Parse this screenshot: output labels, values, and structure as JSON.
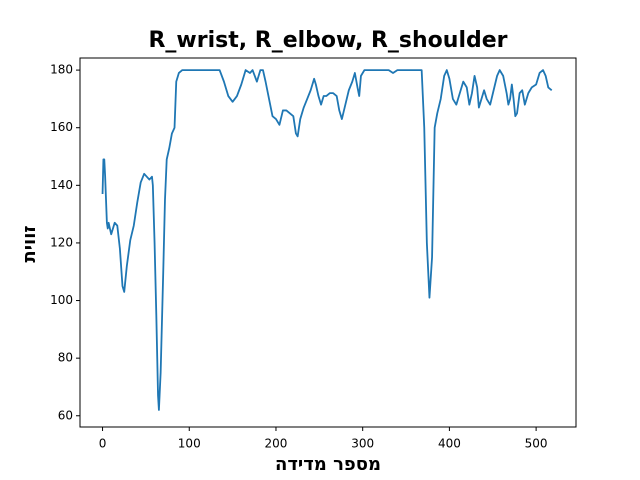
{
  "chart_data": {
    "type": "line",
    "title": "R_wrist, R_elbow, R_shoulder",
    "x_label": "מספר מדידה",
    "y_label": "זווית",
    "x": [
      0,
      1,
      2,
      3,
      5,
      6,
      7,
      10,
      14,
      17,
      20,
      23,
      25,
      28,
      32,
      36,
      40,
      44,
      48,
      51,
      54,
      57,
      58,
      60,
      62,
      64,
      65,
      67,
      70,
      72,
      74,
      77,
      80,
      83,
      85,
      88,
      92,
      100,
      120,
      135,
      140,
      145,
      150,
      155,
      160,
      165,
      170,
      173,
      178,
      182,
      185,
      188,
      192,
      196,
      200,
      204,
      208,
      212,
      216,
      220,
      223,
      225,
      228,
      232,
      236,
      240,
      244,
      246,
      249,
      252,
      255,
      258,
      262,
      266,
      270,
      273,
      276,
      280,
      284,
      288,
      291,
      294,
      296,
      298,
      302,
      310,
      330,
      335,
      340,
      368,
      371,
      374,
      377,
      380,
      383,
      386,
      390,
      394,
      397,
      400,
      404,
      408,
      412,
      416,
      420,
      423,
      426,
      429,
      432,
      434,
      437,
      440,
      443,
      447,
      451,
      455,
      458,
      462,
      466,
      468,
      470,
      472,
      474,
      476,
      478,
      481,
      484,
      487,
      491,
      495,
      500,
      504,
      508,
      511,
      514,
      518
    ],
    "series": [
      {
        "name": "R_wrist, R_elbow, R_shoulder",
        "color": "#1f77b4",
        "values": [
          137,
          149,
          149,
          143,
          127,
          125,
          127,
          123,
          127,
          126,
          118,
          105,
          103,
          112,
          121,
          126,
          134,
          141,
          144,
          143,
          142,
          143,
          140,
          120,
          95,
          67,
          62,
          75,
          110,
          135,
          149,
          153,
          158,
          160,
          176,
          179,
          180,
          180,
          180,
          180,
          176,
          171,
          169,
          171,
          175,
          180,
          179,
          180,
          176,
          180,
          180,
          176,
          170,
          164,
          163,
          161,
          166,
          166,
          165,
          164,
          158,
          157,
          163,
          167,
          170,
          173,
          177,
          175,
          171,
          168,
          171,
          171,
          172,
          172,
          171,
          166,
          163,
          168,
          173,
          176,
          179,
          174,
          171,
          178,
          180,
          180,
          180,
          179,
          180,
          180,
          160,
          120,
          101,
          115,
          160,
          165,
          170,
          178,
          180,
          177,
          170,
          168,
          172,
          176,
          174,
          168,
          172,
          178,
          174,
          167,
          170,
          173,
          170,
          168,
          173,
          178,
          180,
          178,
          172,
          168,
          170,
          175,
          170,
          164,
          165,
          172,
          173,
          168,
          172,
          174,
          175,
          179,
          180,
          178,
          174,
          173
        ]
      }
    ],
    "xlim": [
      -26,
      546
    ],
    "ylim": [
      56.1,
      184.2
    ],
    "xticks": [
      0,
      100,
      200,
      300,
      400,
      500
    ],
    "yticks": [
      60,
      80,
      100,
      120,
      140,
      160,
      180
    ],
    "grid": false
  }
}
